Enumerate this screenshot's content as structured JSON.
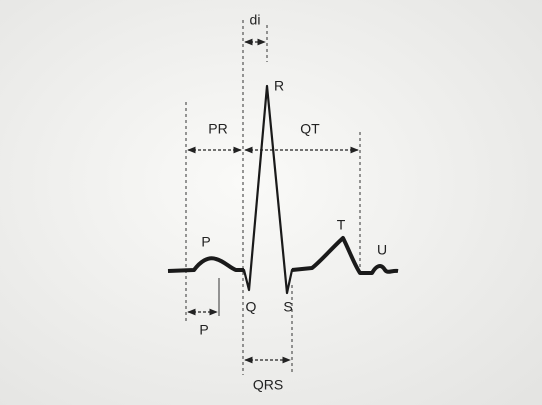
{
  "labels": {
    "di": "di",
    "r": "R",
    "pr": "PR",
    "qt": "QT",
    "p_wave": "P",
    "t": "T",
    "u": "U",
    "q": "Q",
    "s": "S",
    "p_interval": "P",
    "qrs": "QRS"
  }
}
